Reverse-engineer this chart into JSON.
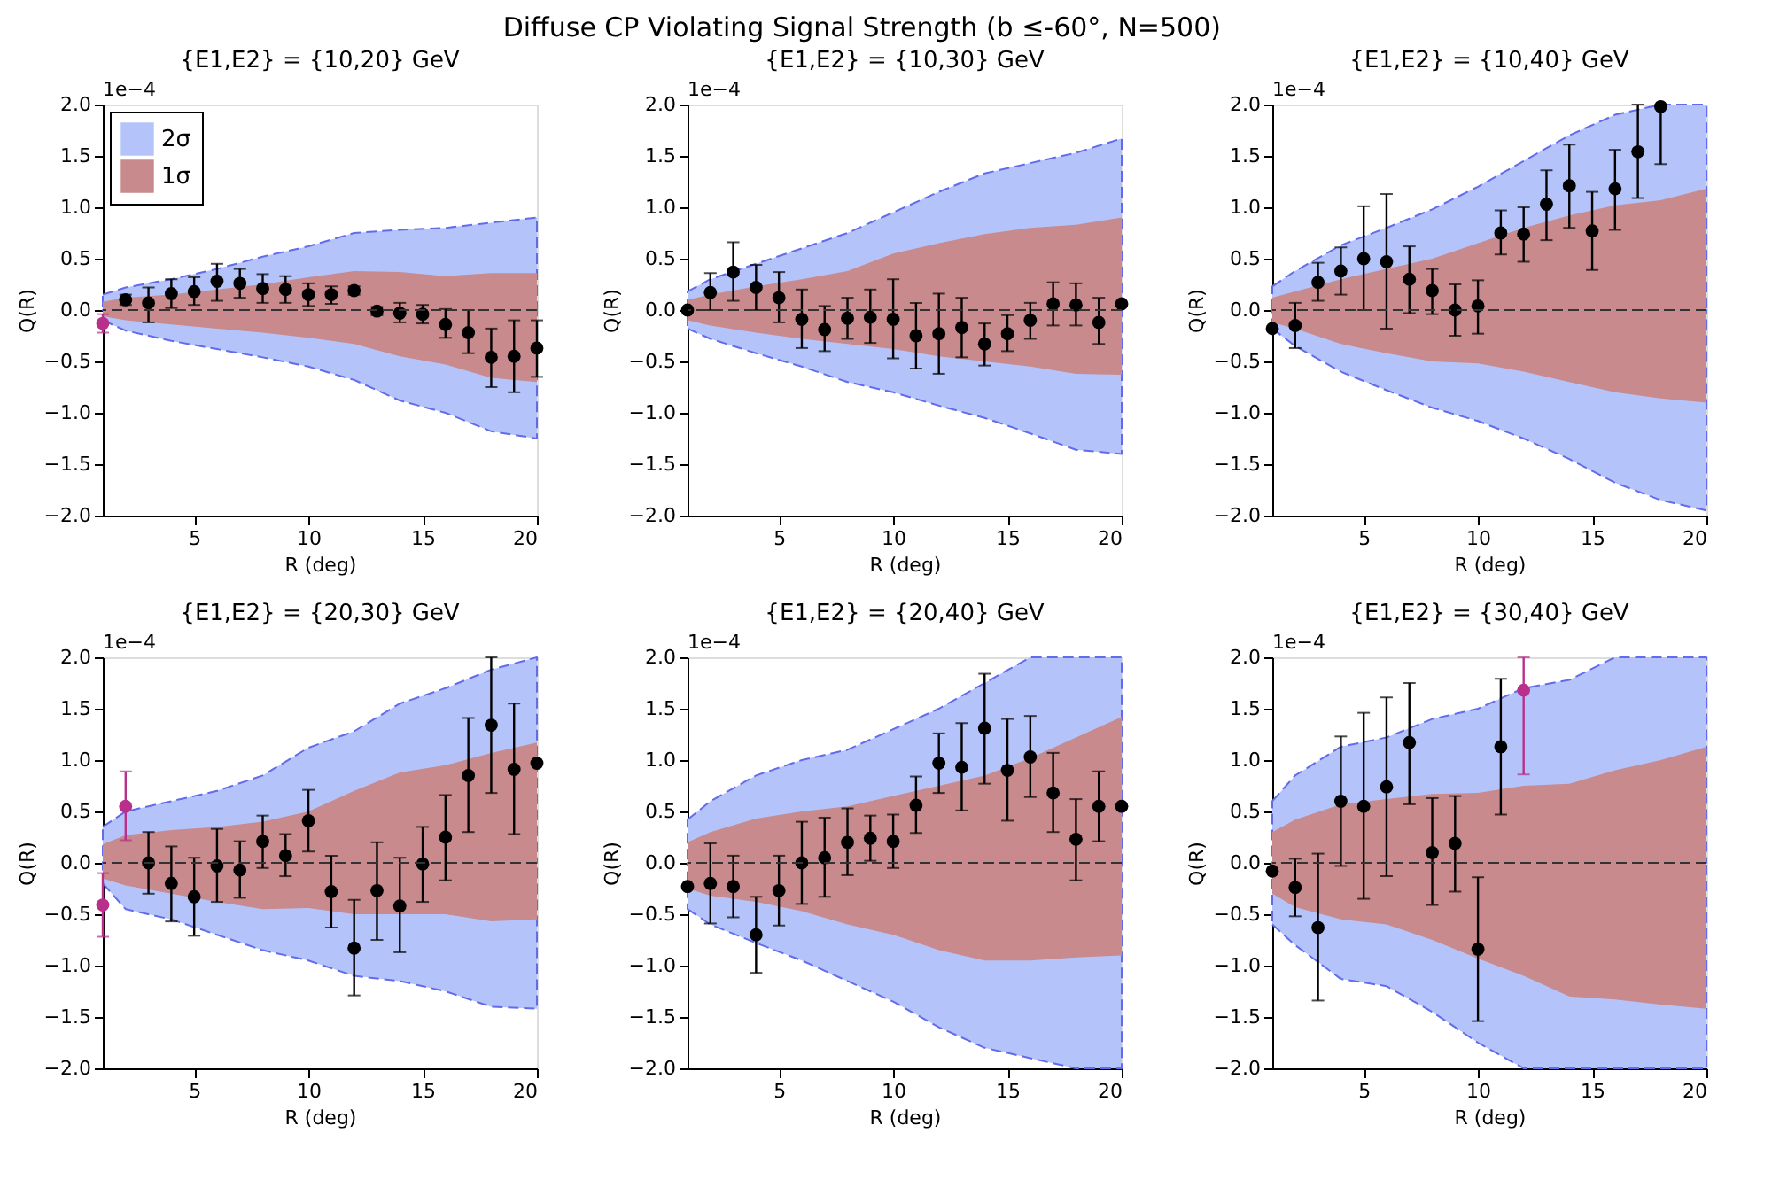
{
  "chart_data": [
    {
      "type": "other",
      "title": "Diffuse CP Violating Signal Strength    (b ≤-60°, N=500)"
    },
    {
      "type": "scatter",
      "title": "{E1,E2} = {10,20} GeV",
      "xlabel": "R (deg)",
      "ylabel": "Q(R)",
      "annotations": [
        "1e−4"
      ],
      "xlim": [
        1,
        20
      ],
      "ylim": [
        -2.0,
        2.0
      ],
      "xticks": [
        5,
        10,
        15,
        20
      ],
      "yticks": [
        {
          "value": -2,
          "label": "−2.0"
        },
        -1.5,
        {
          "value": -1,
          "label": "−1.0"
        },
        -0.5,
        {
          "value": 0,
          "label": "0.0"
        },
        0.5,
        {
          "value": 1,
          "label": "1.0"
        },
        1.5,
        {
          "value": 2,
          "label": "2.0"
        }
      ],
      "grid": false,
      "legend": "top left",
      "ref_lines": [
        {
          "axis": "y",
          "value": 0,
          "color": "#333333",
          "line_style": "dashed"
        }
      ],
      "series": [
        {
          "name": "2σ",
          "type": "area",
          "color": "#b4c4fa",
          "line_style": "dashed",
          "x": [
            1,
            2,
            4,
            6,
            8,
            10,
            12,
            14,
            16,
            18,
            20
          ],
          "values": [
            0.15,
            0.22,
            0.3,
            0.4,
            0.52,
            0.62,
            0.75,
            0.78,
            0.8,
            0.85,
            0.9
          ]
        },
        {
          "type": "area",
          "color": "#b4c4fa",
          "line_style": "dashed",
          "x": [
            1,
            2,
            4,
            6,
            8,
            10,
            12,
            14,
            16,
            18,
            20
          ],
          "values": [
            -0.1,
            -0.2,
            -0.3,
            -0.38,
            -0.46,
            -0.55,
            -0.68,
            -0.88,
            -1.0,
            -1.18,
            -1.25
          ]
        },
        {
          "name": "1σ",
          "type": "area",
          "color": "#c88a8c",
          "x": [
            1,
            2,
            4,
            6,
            8,
            10,
            12,
            14,
            16,
            18,
            20
          ],
          "values": [
            0.08,
            0.12,
            0.15,
            0.2,
            0.25,
            0.32,
            0.38,
            0.37,
            0.33,
            0.36,
            0.36
          ]
        },
        {
          "type": "area",
          "color": "#c88a8c",
          "x": [
            1,
            2,
            4,
            6,
            8,
            10,
            12,
            14,
            16,
            18,
            20
          ],
          "values": [
            -0.06,
            -0.1,
            -0.14,
            -0.18,
            -0.22,
            -0.27,
            -0.33,
            -0.45,
            -0.53,
            -0.66,
            -0.7
          ]
        },
        {
          "type": "scatter",
          "marker": "circle",
          "color": "#000000",
          "x": [
            2,
            3,
            4,
            5,
            6,
            7,
            8,
            9,
            10,
            11,
            12,
            13,
            14,
            15,
            16,
            17,
            18,
            19,
            20
          ],
          "values": [
            0.1,
            0.07,
            0.16,
            0.18,
            0.28,
            0.26,
            0.21,
            0.2,
            0.15,
            0.15,
            0.19,
            -0.01,
            -0.03,
            -0.04,
            -0.14,
            -0.22,
            -0.46,
            -0.45,
            -0.37
          ],
          "errors": [
            [
              0.05,
              0.15
            ],
            [
              -0.12,
              0.22
            ],
            [
              0.02,
              0.3
            ],
            [
              0.05,
              0.32
            ],
            [
              0.09,
              0.45
            ],
            [
              0.12,
              0.4
            ],
            [
              0.07,
              0.35
            ],
            [
              0.07,
              0.33
            ],
            [
              0.04,
              0.26
            ],
            [
              0.06,
              0.23
            ],
            [
              0.15,
              0.23
            ],
            [
              -0.05,
              0.03
            ],
            [
              -0.12,
              0.07
            ],
            [
              -0.13,
              0.05
            ],
            [
              -0.27,
              0.01
            ],
            [
              -0.42,
              0.0
            ],
            [
              -0.75,
              -0.18
            ],
            [
              -0.8,
              -0.1
            ],
            [
              -0.65,
              -0.1
            ]
          ]
        },
        {
          "type": "scatter",
          "marker": "circle",
          "color": "#b8308a",
          "x": [
            1
          ],
          "values": [
            -0.13
          ],
          "errors": [
            [
              -0.22,
              -0.04
            ]
          ]
        }
      ]
    },
    {
      "type": "scatter",
      "title": "{E1,E2} = {10,30} GeV",
      "xlabel": "R (deg)",
      "ylabel": "Q(R)",
      "annotations": [
        "1e−4"
      ],
      "xlim": [
        1,
        20
      ],
      "ylim": [
        -2.0,
        2.0
      ],
      "xticks": [
        5,
        10,
        15,
        20
      ],
      "yticks": [
        {
          "value": -2,
          "label": "−2.0"
        },
        -1.5,
        {
          "value": -1,
          "label": "−1.0"
        },
        -0.5,
        {
          "value": 0,
          "label": "0.0"
        },
        0.5,
        {
          "value": 1,
          "label": "1.0"
        },
        1.5,
        {
          "value": 2,
          "label": "2.0"
        }
      ],
      "grid": false,
      "ref_lines": [
        {
          "axis": "y",
          "value": 0,
          "color": "#333333",
          "line_style": "dashed"
        }
      ],
      "series": [
        {
          "type": "area",
          "color": "#b4c4fa",
          "line_style": "dashed",
          "x": [
            1,
            2,
            4,
            6,
            8,
            10,
            12,
            14,
            16,
            18,
            20
          ],
          "values": [
            0.18,
            0.3,
            0.45,
            0.6,
            0.75,
            0.95,
            1.15,
            1.33,
            1.43,
            1.53,
            1.67
          ]
        },
        {
          "type": "area",
          "color": "#b4c4fa",
          "line_style": "dashed",
          "x": [
            1,
            2,
            4,
            6,
            8,
            10,
            12,
            14,
            16,
            18,
            20
          ],
          "values": [
            -0.18,
            -0.28,
            -0.42,
            -0.55,
            -0.7,
            -0.8,
            -0.93,
            -1.05,
            -1.2,
            -1.36,
            -1.4
          ]
        },
        {
          "type": "area",
          "color": "#c88a8c",
          "x": [
            1,
            2,
            4,
            6,
            8,
            10,
            12,
            14,
            16,
            18,
            20
          ],
          "values": [
            0.1,
            0.15,
            0.23,
            0.3,
            0.38,
            0.55,
            0.65,
            0.74,
            0.8,
            0.83,
            0.9
          ]
        },
        {
          "type": "area",
          "color": "#c88a8c",
          "x": [
            1,
            2,
            4,
            6,
            8,
            10,
            12,
            14,
            16,
            18,
            20
          ],
          "values": [
            -0.1,
            -0.15,
            -0.22,
            -0.28,
            -0.33,
            -0.38,
            -0.45,
            -0.5,
            -0.55,
            -0.62,
            -0.63
          ]
        },
        {
          "type": "scatter",
          "marker": "circle",
          "color": "#000000",
          "x": [
            1,
            2,
            3,
            4,
            5,
            6,
            7,
            8,
            9,
            10,
            11,
            12,
            13,
            14,
            15,
            16,
            17,
            18,
            19,
            20
          ],
          "values": [
            0.0,
            0.17,
            0.37,
            0.22,
            0.12,
            -0.09,
            -0.19,
            -0.08,
            -0.07,
            -0.09,
            -0.25,
            -0.23,
            -0.17,
            -0.33,
            -0.23,
            -0.1,
            0.06,
            0.05,
            -0.12,
            0.06
          ],
          "errors": [
            null,
            [
              0.0,
              0.36
            ],
            [
              0.09,
              0.66
            ],
            [
              0.0,
              0.44
            ],
            [
              -0.12,
              0.37
            ],
            [
              -0.37,
              0.2
            ],
            [
              -0.4,
              0.04
            ],
            [
              -0.28,
              0.12
            ],
            [
              -0.32,
              0.2
            ],
            [
              -0.47,
              0.3
            ],
            [
              -0.57,
              0.07
            ],
            [
              -0.62,
              0.16
            ],
            [
              -0.46,
              0.12
            ],
            [
              -0.54,
              -0.13
            ],
            [
              -0.4,
              -0.05
            ],
            [
              -0.28,
              0.07
            ],
            [
              -0.15,
              0.27
            ],
            [
              -0.15,
              0.26
            ],
            [
              -0.33,
              0.12
            ],
            null
          ]
        }
      ]
    },
    {
      "type": "scatter",
      "title": "{E1,E2} = {10,40} GeV",
      "xlabel": "R (deg)",
      "ylabel": "Q(R)",
      "annotations": [
        "1e−4"
      ],
      "xlim": [
        1,
        20
      ],
      "ylim": [
        -2.0,
        2.0
      ],
      "xticks": [
        5,
        10,
        15,
        20
      ],
      "yticks": [
        {
          "value": -2,
          "label": "−2.0"
        },
        -1.5,
        {
          "value": -1,
          "label": "−1.0"
        },
        -0.5,
        {
          "value": 0,
          "label": "0.0"
        },
        0.5,
        {
          "value": 1,
          "label": "1.0"
        },
        1.5,
        {
          "value": 2,
          "label": "2.0"
        }
      ],
      "grid": false,
      "ref_lines": [
        {
          "axis": "y",
          "value": 0,
          "color": "#333333",
          "line_style": "dashed"
        }
      ],
      "series": [
        {
          "type": "area",
          "color": "#b4c4fa",
          "line_style": "dashed",
          "x": [
            1,
            2,
            4,
            6,
            8,
            10,
            12,
            14,
            16,
            18,
            20
          ],
          "values": [
            0.23,
            0.38,
            0.63,
            0.8,
            0.98,
            1.2,
            1.45,
            1.7,
            1.9,
            2.0,
            2.0
          ]
        },
        {
          "type": "area",
          "color": "#b4c4fa",
          "line_style": "dashed",
          "x": [
            1,
            2,
            4,
            6,
            8,
            10,
            12,
            14,
            16,
            18,
            20
          ],
          "values": [
            -0.18,
            -0.35,
            -0.6,
            -0.78,
            -0.95,
            -1.08,
            -1.25,
            -1.45,
            -1.68,
            -1.85,
            -1.95
          ]
        },
        {
          "type": "area",
          "color": "#c88a8c",
          "x": [
            1,
            2,
            4,
            6,
            8,
            10,
            12,
            14,
            16,
            18,
            20
          ],
          "values": [
            0.12,
            0.18,
            0.3,
            0.4,
            0.5,
            0.65,
            0.8,
            0.92,
            1.02,
            1.07,
            1.18
          ]
        },
        {
          "type": "area",
          "color": "#c88a8c",
          "x": [
            1,
            2,
            4,
            6,
            8,
            10,
            12,
            14,
            16,
            18,
            20
          ],
          "values": [
            -0.12,
            -0.18,
            -0.33,
            -0.42,
            -0.5,
            -0.52,
            -0.6,
            -0.7,
            -0.8,
            -0.86,
            -0.9
          ]
        },
        {
          "type": "scatter",
          "marker": "circle",
          "color": "#000000",
          "x": [
            1,
            2,
            3,
            4,
            5,
            6,
            7,
            8,
            9,
            10,
            11,
            12,
            13,
            14,
            15,
            16,
            17,
            18
          ],
          "values": [
            -0.18,
            -0.15,
            0.27,
            0.38,
            0.5,
            0.47,
            0.3,
            0.19,
            0.0,
            0.04,
            0.75,
            0.74,
            1.03,
            1.21,
            0.77,
            1.18,
            1.54,
            1.98
          ],
          "errors": [
            null,
            [
              -0.37,
              0.07
            ],
            [
              0.09,
              0.46
            ],
            [
              0.15,
              0.61
            ],
            [
              0.0,
              1.01
            ],
            [
              -0.18,
              1.13
            ],
            [
              -0.03,
              0.62
            ],
            [
              -0.04,
              0.4
            ],
            [
              -0.25,
              0.25
            ],
            [
              -0.23,
              0.29
            ],
            [
              0.54,
              0.97
            ],
            [
              0.47,
              1.0
            ],
            [
              0.68,
              1.36
            ],
            [
              0.8,
              1.61
            ],
            [
              0.39,
              1.15
            ],
            [
              0.78,
              1.56
            ],
            [
              1.09,
              2.0
            ],
            [
              1.42,
              2.0
            ]
          ]
        }
      ]
    },
    {
      "type": "scatter",
      "title": "{E1,E2} = {20,30} GeV",
      "xlabel": "R (deg)",
      "ylabel": "Q(R)",
      "annotations": [
        "1e−4"
      ],
      "xlim": [
        1,
        20
      ],
      "ylim": [
        -2.0,
        2.0
      ],
      "xticks": [
        5,
        10,
        15,
        20
      ],
      "yticks": [
        {
          "value": -2,
          "label": "−2.0"
        },
        -1.5,
        {
          "value": -1,
          "label": "−1.0"
        },
        -0.5,
        {
          "value": 0,
          "label": "0.0"
        },
        0.5,
        {
          "value": 1,
          "label": "1.0"
        },
        1.5,
        {
          "value": 2,
          "label": "2.0"
        }
      ],
      "grid": false,
      "ref_lines": [
        {
          "axis": "y",
          "value": 0,
          "color": "#333333",
          "line_style": "dashed"
        }
      ],
      "series": [
        {
          "type": "area",
          "color": "#b4c4fa",
          "line_style": "dashed",
          "x": [
            1,
            2,
            4,
            6,
            8,
            10,
            12,
            14,
            16,
            18,
            20
          ],
          "values": [
            0.35,
            0.5,
            0.6,
            0.7,
            0.85,
            1.12,
            1.28,
            1.55,
            1.7,
            1.88,
            2.0
          ]
        },
        {
          "type": "area",
          "color": "#b4c4fa",
          "line_style": "dashed",
          "x": [
            1,
            2,
            4,
            6,
            8,
            10,
            12,
            14,
            16,
            18,
            20
          ],
          "values": [
            -0.2,
            -0.45,
            -0.55,
            -0.7,
            -0.85,
            -0.95,
            -1.1,
            -1.15,
            -1.25,
            -1.4,
            -1.42
          ]
        },
        {
          "type": "area",
          "color": "#c88a8c",
          "x": [
            1,
            2,
            4,
            6,
            8,
            10,
            12,
            14,
            16,
            18,
            20
          ],
          "values": [
            0.18,
            0.27,
            0.32,
            0.35,
            0.4,
            0.5,
            0.7,
            0.88,
            0.95,
            1.07,
            1.17
          ]
        },
        {
          "type": "area",
          "color": "#c88a8c",
          "x": [
            1,
            2,
            4,
            6,
            8,
            10,
            12,
            14,
            16,
            18,
            20
          ],
          "values": [
            -0.15,
            -0.22,
            -0.3,
            -0.38,
            -0.45,
            -0.44,
            -0.5,
            -0.5,
            -0.5,
            -0.57,
            -0.55
          ]
        },
        {
          "type": "scatter",
          "marker": "circle",
          "color": "#000000",
          "x": [
            3,
            4,
            5,
            6,
            7,
            8,
            9,
            10,
            11,
            12,
            13,
            14,
            15,
            16,
            17,
            18,
            19,
            20
          ],
          "values": [
            0.0,
            -0.2,
            -0.33,
            -0.03,
            -0.07,
            0.21,
            0.07,
            0.41,
            -0.28,
            -0.83,
            -0.27,
            -0.42,
            -0.01,
            0.25,
            0.85,
            1.34,
            0.91,
            0.97
          ],
          "errors": [
            [
              -0.3,
              0.3
            ],
            [
              -0.57,
              0.16
            ],
            [
              -0.71,
              0.05
            ],
            [
              -0.38,
              0.33
            ],
            [
              -0.34,
              0.21
            ],
            [
              -0.05,
              0.46
            ],
            [
              -0.13,
              0.28
            ],
            [
              0.11,
              0.71
            ],
            [
              -0.63,
              0.07
            ],
            [
              -1.29,
              -0.36
            ],
            [
              -0.75,
              0.2
            ],
            [
              -0.87,
              0.05
            ],
            [
              -0.38,
              0.35
            ],
            [
              -0.17,
              0.66
            ],
            [
              0.3,
              1.41
            ],
            [
              0.68,
              2.0
            ],
            [
              0.28,
              1.55
            ],
            null
          ]
        },
        {
          "type": "scatter",
          "marker": "circle",
          "color": "#b8308a",
          "x": [
            1,
            2
          ],
          "values": [
            -0.41,
            0.55
          ],
          "errors": [
            [
              -0.72,
              -0.1
            ],
            [
              0.22,
              0.89
            ]
          ]
        }
      ]
    },
    {
      "type": "scatter",
      "title": "{E1,E2} = {20,40} GeV",
      "xlabel": "R (deg)",
      "ylabel": "Q(R)",
      "annotations": [
        "1e−4"
      ],
      "xlim": [
        1,
        20
      ],
      "ylim": [
        -2.0,
        2.0
      ],
      "xticks": [
        5,
        10,
        15,
        20
      ],
      "yticks": [
        {
          "value": -2,
          "label": "−2.0"
        },
        -1.5,
        {
          "value": -1,
          "label": "−1.0"
        },
        -0.5,
        {
          "value": 0,
          "label": "0.0"
        },
        0.5,
        {
          "value": 1,
          "label": "1.0"
        },
        1.5,
        {
          "value": 2,
          "label": "2.0"
        }
      ],
      "grid": false,
      "ref_lines": [
        {
          "axis": "y",
          "value": 0,
          "color": "#333333",
          "line_style": "dashed"
        }
      ],
      "series": [
        {
          "type": "area",
          "color": "#b4c4fa",
          "line_style": "dashed",
          "x": [
            1,
            2,
            4,
            6,
            8,
            10,
            12,
            14,
            16,
            18,
            20
          ],
          "values": [
            0.42,
            0.6,
            0.85,
            1.0,
            1.1,
            1.3,
            1.5,
            1.75,
            2.0,
            2.0,
            2.0
          ]
        },
        {
          "type": "area",
          "color": "#b4c4fa",
          "line_style": "dashed",
          "x": [
            1,
            2,
            4,
            6,
            8,
            10,
            12,
            14,
            16,
            18,
            20
          ],
          "values": [
            -0.45,
            -0.6,
            -0.78,
            -0.95,
            -1.15,
            -1.35,
            -1.6,
            -1.8,
            -1.9,
            -2.0,
            -2.0
          ]
        },
        {
          "type": "area",
          "color": "#c88a8c",
          "x": [
            1,
            2,
            4,
            6,
            8,
            10,
            12,
            14,
            16,
            18,
            20
          ],
          "values": [
            0.2,
            0.3,
            0.43,
            0.5,
            0.55,
            0.65,
            0.75,
            0.85,
            1.02,
            1.22,
            1.42
          ]
        },
        {
          "type": "area",
          "color": "#c88a8c",
          "x": [
            1,
            2,
            4,
            6,
            8,
            10,
            12,
            14,
            16,
            18,
            20
          ],
          "values": [
            -0.25,
            -0.32,
            -0.38,
            -0.47,
            -0.6,
            -0.7,
            -0.85,
            -0.95,
            -0.95,
            -0.92,
            -0.9
          ]
        },
        {
          "type": "scatter",
          "marker": "circle",
          "color": "#000000",
          "x": [
            1,
            2,
            3,
            4,
            5,
            6,
            7,
            8,
            9,
            10,
            11,
            12,
            13,
            14,
            15,
            16,
            17,
            18,
            19,
            20
          ],
          "values": [
            -0.23,
            -0.2,
            -0.23,
            -0.7,
            -0.27,
            0.0,
            0.05,
            0.2,
            0.24,
            0.21,
            0.56,
            0.97,
            0.93,
            1.31,
            0.9,
            1.03,
            0.68,
            0.23,
            0.55,
            0.55
          ],
          "errors": [
            null,
            [
              -0.59,
              0.19
            ],
            [
              -0.53,
              0.07
            ],
            [
              -1.07,
              -0.33
            ],
            [
              -0.61,
              0.07
            ],
            [
              -0.4,
              0.4
            ],
            [
              -0.33,
              0.44
            ],
            [
              -0.12,
              0.53
            ],
            [
              0.02,
              0.46
            ],
            [
              -0.05,
              0.47
            ],
            [
              0.29,
              0.84
            ],
            [
              0.68,
              1.26
            ],
            [
              0.51,
              1.36
            ],
            [
              0.77,
              1.84
            ],
            [
              0.41,
              1.4
            ],
            [
              0.64,
              1.43
            ],
            [
              0.3,
              1.07
            ],
            [
              -0.17,
              0.62
            ],
            [
              0.21,
              0.89
            ],
            null
          ]
        }
      ]
    },
    {
      "type": "scatter",
      "title": "{E1,E2} = {30,40} GeV",
      "xlabel": "R (deg)",
      "ylabel": "Q(R)",
      "annotations": [
        "1e−4"
      ],
      "xlim": [
        1,
        20
      ],
      "ylim": [
        -2.0,
        2.0
      ],
      "xticks": [
        5,
        10,
        15,
        20
      ],
      "yticks": [
        {
          "value": -2,
          "label": "−2.0"
        },
        -1.5,
        {
          "value": -1,
          "label": "−1.0"
        },
        -0.5,
        {
          "value": 0,
          "label": "0.0"
        },
        0.5,
        {
          "value": 1,
          "label": "1.0"
        },
        1.5,
        {
          "value": 2,
          "label": "2.0"
        }
      ],
      "grid": false,
      "ref_lines": [
        {
          "axis": "y",
          "value": 0,
          "color": "#333333",
          "line_style": "dashed"
        }
      ],
      "series": [
        {
          "type": "area",
          "color": "#b4c4fa",
          "line_style": "dashed",
          "x": [
            1,
            2,
            4,
            6,
            8,
            10,
            12,
            14,
            16,
            18,
            20
          ],
          "values": [
            0.6,
            0.85,
            1.13,
            1.22,
            1.4,
            1.5,
            1.7,
            1.78,
            2.0,
            2.0,
            2.0
          ]
        },
        {
          "type": "area",
          "color": "#b4c4fa",
          "line_style": "dashed",
          "x": [
            1,
            2,
            4,
            6,
            8,
            10,
            12,
            14,
            16,
            18,
            20
          ],
          "values": [
            -0.6,
            -0.8,
            -1.13,
            -1.2,
            -1.45,
            -1.75,
            -2.0,
            -2.0,
            -2.0,
            -2.0,
            -2.0
          ]
        },
        {
          "type": "area",
          "color": "#c88a8c",
          "x": [
            1,
            2,
            4,
            6,
            8,
            10,
            12,
            14,
            16,
            18,
            20
          ],
          "values": [
            0.3,
            0.42,
            0.57,
            0.62,
            0.67,
            0.68,
            0.75,
            0.77,
            0.9,
            1.0,
            1.13
          ]
        },
        {
          "type": "area",
          "color": "#c88a8c",
          "x": [
            1,
            2,
            4,
            6,
            8,
            10,
            12,
            14,
            16,
            18,
            20
          ],
          "values": [
            -0.3,
            -0.43,
            -0.55,
            -0.6,
            -0.75,
            -0.93,
            -1.1,
            -1.3,
            -1.33,
            -1.38,
            -1.42
          ]
        },
        {
          "type": "scatter",
          "marker": "circle",
          "color": "#000000",
          "x": [
            1,
            2,
            3,
            4,
            5,
            6,
            7,
            8,
            9,
            10,
            11
          ],
          "values": [
            -0.08,
            -0.24,
            -0.63,
            0.6,
            0.55,
            0.74,
            1.17,
            0.1,
            0.19,
            -0.84,
            1.13
          ],
          "errors": [
            null,
            [
              -0.52,
              0.04
            ],
            [
              -1.34,
              0.09
            ],
            [
              -0.03,
              1.23
            ],
            [
              -0.35,
              1.46
            ],
            [
              -0.13,
              1.61
            ],
            [
              0.57,
              1.75
            ],
            [
              -0.41,
              0.63
            ],
            [
              -0.28,
              0.65
            ],
            [
              -1.54,
              -0.14
            ],
            [
              0.47,
              1.79
            ]
          ]
        },
        {
          "type": "scatter",
          "marker": "circle",
          "color": "#b8308a",
          "x": [
            12
          ],
          "values": [
            1.68
          ],
          "errors": [
            [
              0.86,
              2.0
            ]
          ]
        }
      ]
    }
  ]
}
